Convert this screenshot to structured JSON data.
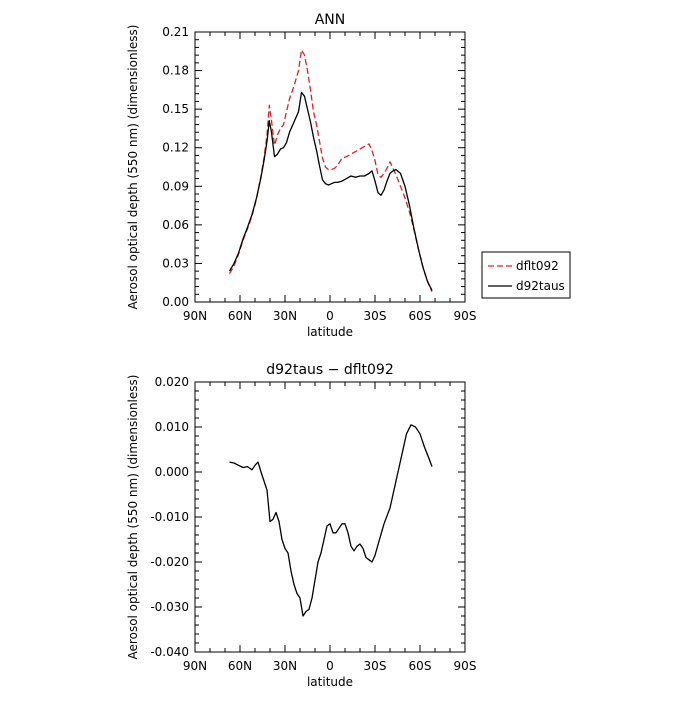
{
  "chart_data": [
    {
      "type": "line",
      "title": "ANN",
      "xlabel": "latitude",
      "ylabel": "Aerosol optical depth (550 nm) (dimensionless)",
      "xlim": [
        90,
        -90
      ],
      "ylim": [
        0,
        0.21
      ],
      "xticks": [
        {
          "value": 90,
          "label": "90N"
        },
        {
          "value": 60,
          "label": "60N"
        },
        {
          "value": 30,
          "label": "30N"
        },
        {
          "value": 0,
          "label": "0"
        },
        {
          "value": -30,
          "label": "30S"
        },
        {
          "value": -60,
          "label": "60S"
        },
        {
          "value": -90,
          "label": "90S"
        }
      ],
      "yticks": [
        "0.00",
        "0.03",
        "0.06",
        "0.09",
        "0.12",
        "0.15",
        "0.18",
        "0.21"
      ],
      "grid": false,
      "legend_position": "right",
      "series": [
        {
          "name": "dflt092",
          "color": "#e02020",
          "dash": "dashed",
          "x": [
            67,
            64,
            61,
            58,
            55,
            52,
            49,
            46,
            44,
            42,
            40.5,
            39,
            37,
            35,
            33,
            31,
            29,
            27,
            24,
            21,
            19,
            17,
            15,
            13,
            11,
            9,
            7,
            5,
            3,
            1,
            -1,
            -3,
            -5,
            -8,
            -11,
            -14,
            -17,
            -20,
            -23,
            -26,
            -28,
            -30,
            -32,
            -34,
            -36,
            -38,
            -40,
            -42,
            -44,
            -47,
            -50,
            -53,
            -56,
            -59,
            -62,
            -65,
            -68
          ],
          "y": [
            0.022,
            0.028,
            0.037,
            0.048,
            0.057,
            0.067,
            0.08,
            0.098,
            0.112,
            0.13,
            0.153,
            0.141,
            0.122,
            0.13,
            0.135,
            0.138,
            0.148,
            0.158,
            0.168,
            0.18,
            0.196,
            0.192,
            0.18,
            0.165,
            0.148,
            0.138,
            0.125,
            0.112,
            0.105,
            0.103,
            0.103,
            0.104,
            0.106,
            0.112,
            0.113,
            0.115,
            0.117,
            0.119,
            0.121,
            0.123,
            0.118,
            0.11,
            0.099,
            0.097,
            0.1,
            0.104,
            0.109,
            0.104,
            0.099,
            0.09,
            0.081,
            0.07,
            0.056,
            0.041,
            0.027,
            0.016,
            0.008
          ]
        },
        {
          "name": "d92taus",
          "color": "#000000",
          "dash": "solid",
          "x": [
            67,
            64,
            61,
            58,
            55,
            52,
            49,
            46,
            44,
            42,
            40.5,
            39,
            37,
            35,
            33,
            31,
            29,
            27,
            24,
            21,
            19,
            17,
            15,
            13,
            11,
            9,
            7,
            5,
            3,
            1,
            -1,
            -3,
            -5,
            -8,
            -11,
            -14,
            -17,
            -20,
            -23,
            -26,
            -28,
            -30,
            -32,
            -34,
            -36,
            -38,
            -40,
            -42,
            -44,
            -47,
            -50,
            -53,
            -56,
            -59,
            -62,
            -65,
            -68
          ],
          "y": [
            0.024,
            0.03,
            0.038,
            0.049,
            0.058,
            0.068,
            0.081,
            0.097,
            0.11,
            0.125,
            0.141,
            0.132,
            0.113,
            0.115,
            0.119,
            0.12,
            0.124,
            0.132,
            0.14,
            0.148,
            0.163,
            0.16,
            0.15,
            0.14,
            0.128,
            0.118,
            0.106,
            0.095,
            0.092,
            0.091,
            0.092,
            0.093,
            0.093,
            0.094,
            0.096,
            0.098,
            0.097,
            0.098,
            0.098,
            0.1,
            0.102,
            0.094,
            0.085,
            0.083,
            0.087,
            0.094,
            0.1,
            0.102,
            0.103,
            0.1,
            0.09,
            0.075,
            0.057,
            0.041,
            0.027,
            0.016,
            0.009
          ]
        }
      ]
    },
    {
      "type": "line",
      "title": "d92taus − dflt092",
      "xlabel": "latitude",
      "ylabel": "Aerosol optical depth (550 nm) (dimensionless)",
      "xlim": [
        90,
        -90
      ],
      "ylim": [
        -0.04,
        0.02
      ],
      "xticks": [
        {
          "value": 90,
          "label": "90N"
        },
        {
          "value": 60,
          "label": "60N"
        },
        {
          "value": 30,
          "label": "30N"
        },
        {
          "value": 0,
          "label": "0"
        },
        {
          "value": -30,
          "label": "30S"
        },
        {
          "value": -60,
          "label": "60S"
        },
        {
          "value": -90,
          "label": "90S"
        }
      ],
      "yticks": [
        "-0.040",
        "-0.030",
        "-0.020",
        "-0.010",
        "0.000",
        "0.010",
        "0.020"
      ],
      "grid": false,
      "series": [
        {
          "color": "#000000",
          "dash": "solid",
          "x": [
            67,
            64,
            61,
            58,
            55,
            52,
            50,
            48,
            46,
            44,
            42,
            40,
            38,
            36,
            34,
            32,
            30,
            28,
            26,
            24,
            22,
            20,
            18,
            16,
            14,
            12,
            10,
            8,
            6,
            4,
            2,
            0,
            -2,
            -4,
            -6,
            -8,
            -10,
            -12,
            -14,
            -16,
            -18,
            -20,
            -22,
            -24,
            -26,
            -28,
            -30,
            -33,
            -36,
            -40,
            -44,
            -48,
            -51,
            -54,
            -57,
            -60,
            -63,
            -66,
            -68
          ],
          "y": [
            0.0022,
            0.002,
            0.0015,
            0.001,
            0.0012,
            0.0005,
            0.0015,
            0.0022,
            0.0,
            -0.002,
            -0.004,
            -0.011,
            -0.0105,
            -0.009,
            -0.011,
            -0.015,
            -0.017,
            -0.018,
            -0.022,
            -0.025,
            -0.027,
            -0.028,
            -0.032,
            -0.031,
            -0.0305,
            -0.028,
            -0.024,
            -0.02,
            -0.018,
            -0.015,
            -0.012,
            -0.0115,
            -0.0135,
            -0.0135,
            -0.0125,
            -0.0115,
            -0.0115,
            -0.0135,
            -0.0165,
            -0.0175,
            -0.0165,
            -0.016,
            -0.017,
            -0.019,
            -0.0195,
            -0.02,
            -0.0185,
            -0.015,
            -0.0115,
            -0.008,
            -0.002,
            0.004,
            0.0085,
            0.0105,
            0.01,
            0.0085,
            0.0055,
            0.003,
            0.0012
          ]
        }
      ]
    }
  ]
}
